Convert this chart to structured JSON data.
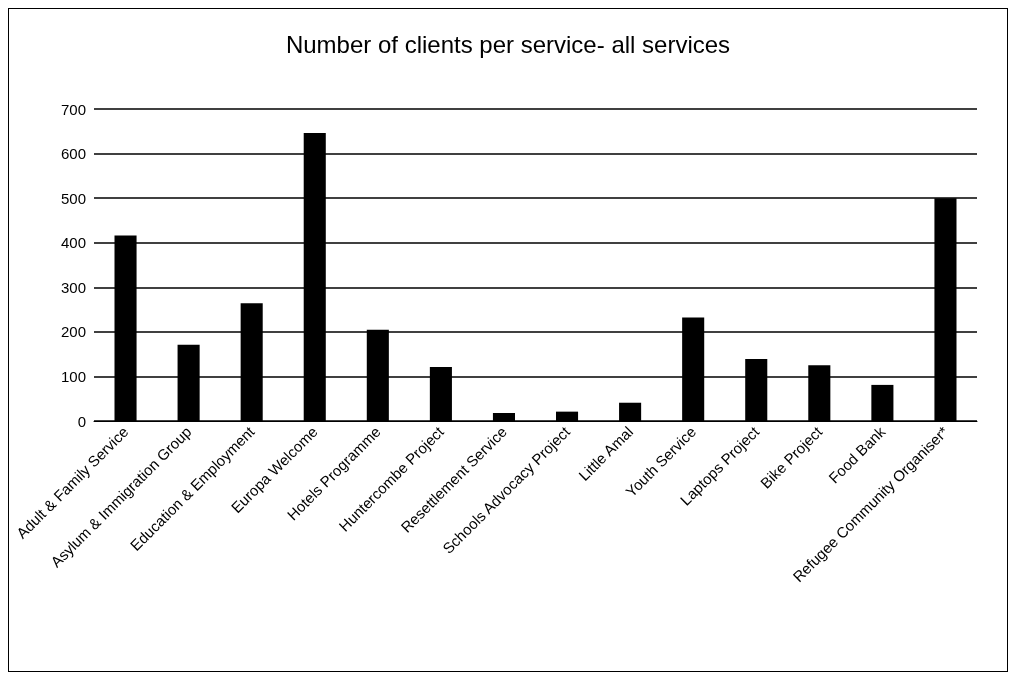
{
  "chart_data": {
    "type": "bar",
    "title": "Number of clients per service- all services",
    "categories": [
      "Adult & Family Service",
      "Asylum & Immigration Group",
      "Education & Employment",
      "Europa Welcome",
      "Hotels Programme",
      "Huntercombe Project",
      "Resettlement Service",
      "Schools Advocacy Project",
      "Little Amal",
      "Youth Service",
      "Laptops Project",
      "Bike Project",
      "Food Bank",
      "Refugee Community Organiser*"
    ],
    "values": [
      416,
      171,
      264,
      646,
      205,
      121,
      18,
      21,
      41,
      232,
      139,
      125,
      81,
      500
    ],
    "color": "#000000",
    "ylim": [
      0,
      700
    ],
    "yticks": [
      0,
      100,
      200,
      300,
      400,
      500,
      600,
      700
    ],
    "grid": "y"
  }
}
